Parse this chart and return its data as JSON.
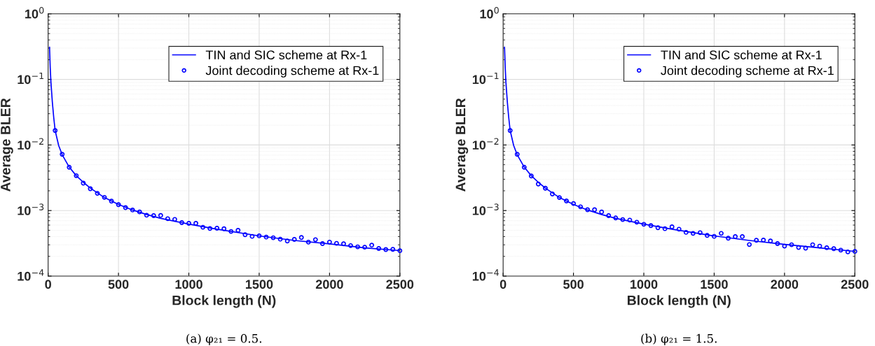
{
  "chart_data": [
    {
      "type": "line",
      "xlabel": "Block length (N)",
      "ylabel": "Average BLER",
      "log": "y",
      "grid": true,
      "legend": "top right",
      "xlim": [
        0,
        2500
      ],
      "xticks": [
        0,
        500,
        1000,
        1500,
        2000,
        2500
      ],
      "ylim": [
        0.0001,
        1
      ],
      "yticks": [
        {
          "value": 0.0001,
          "label": "10$^{−4}$"
        },
        {
          "value": 0.001,
          "label": "10$^{−3}$"
        },
        {
          "value": 0.01,
          "label": "10$^{−2}$"
        },
        {
          "value": 0.1,
          "label": "10$^{−1}$"
        },
        {
          "value": 1,
          "label": "10$^{0}$"
        }
      ],
      "annotations": [
        "(a) φ₂₁ = 0.5."
      ],
      "series": [
        {
          "name": "TIN and SIC scheme at Rx-1",
          "type": "line",
          "color": "#0000ff",
          "marker": "none",
          "line_style": "solid",
          "x": [
            10,
            15,
            20,
            30,
            40,
            50,
            75,
            100,
            150,
            200,
            250,
            300,
            400,
            500,
            600,
            700,
            800,
            1000,
            1200,
            1500,
            1750,
            2000,
            2250,
            2500
          ],
          "values": [
            0.31,
            0.15,
            0.09,
            0.045,
            0.026,
            0.0166,
            0.0098,
            0.0071,
            0.0046,
            0.0034,
            0.0027,
            0.0022,
            0.00158,
            0.00124,
            0.00102,
            0.00087,
            0.00076,
            0.00062,
            0.00052,
            0.00041,
            0.00035,
            0.00031,
            0.00027,
            0.000245
          ]
        },
        {
          "name": "Joint decoding scheme at Rx-1",
          "type": "scatter",
          "color": "#0000ff",
          "marker": "circle",
          "x": [
            50,
            100,
            150,
            200,
            250,
            300,
            350,
            400,
            450,
            500,
            550,
            600,
            650,
            700,
            750,
            800,
            850,
            900,
            950,
            1000,
            1050,
            1100,
            1150,
            1200,
            1250,
            1300,
            1350,
            1400,
            1450,
            1500,
            1550,
            1600,
            1650,
            1700,
            1750,
            1800,
            1850,
            1900,
            1950,
            2000,
            2050,
            2100,
            2150,
            2200,
            2250,
            2300,
            2350,
            2400,
            2450,
            2500
          ],
          "values": [
            0.0166,
            0.0072,
            0.00457,
            0.0034,
            0.00262,
            0.00215,
            0.00183,
            0.00159,
            0.00139,
            0.00123,
            0.00111,
            0.00102,
            0.000953,
            0.000849,
            0.000836,
            0.000843,
            0.000752,
            0.000733,
            0.000654,
            0.000638,
            0.000638,
            0.000556,
            0.000533,
            0.000537,
            0.000528,
            0.00048,
            0.0005,
            0.000428,
            0.000404,
            0.000411,
            0.000394,
            0.000385,
            0.000366,
            0.000343,
            0.000363,
            0.000388,
            0.00033,
            0.00036,
            0.000313,
            0.00033,
            0.000316,
            0.000311,
            0.000292,
            0.00028,
            0.000276,
            0.000297,
            0.000264,
            0.000254,
            0.000256,
            0.000244
          ]
        }
      ]
    },
    {
      "type": "line",
      "xlabel": "Block length (N)",
      "ylabel": "Average BLER",
      "log": "y",
      "grid": true,
      "legend": "top right",
      "xlim": [
        0,
        2500
      ],
      "xticks": [
        0,
        500,
        1000,
        1500,
        2000,
        2500
      ],
      "ylim": [
        0.0001,
        1
      ],
      "yticks": [
        {
          "value": 0.0001,
          "label": "10$^{−4}$"
        },
        {
          "value": 0.001,
          "label": "10$^{−3}$"
        },
        {
          "value": 0.01,
          "label": "10$^{−2}$"
        },
        {
          "value": 0.1,
          "label": "10$^{−1}$"
        },
        {
          "value": 1,
          "label": "10$^{0}$"
        }
      ],
      "annotations": [
        "(b) φ₂₁ = 1.5."
      ],
      "series": [
        {
          "name": "TIN and SIC scheme at Rx-1",
          "type": "line",
          "color": "#0000ff",
          "marker": "none",
          "line_style": "solid",
          "x": [
            10,
            15,
            20,
            30,
            40,
            50,
            75,
            100,
            150,
            200,
            250,
            300,
            400,
            500,
            600,
            700,
            800,
            1000,
            1200,
            1500,
            1750,
            2000,
            2250,
            2500
          ],
          "values": [
            0.31,
            0.15,
            0.09,
            0.045,
            0.026,
            0.0166,
            0.0098,
            0.0071,
            0.0046,
            0.0034,
            0.0027,
            0.0022,
            0.00158,
            0.00124,
            0.00102,
            0.00087,
            0.00076,
            0.00062,
            0.00052,
            0.00041,
            0.00035,
            0.000305,
            0.00027,
            0.000238
          ]
        },
        {
          "name": "Joint decoding scheme at Rx-1",
          "type": "scatter",
          "color": "#0000ff",
          "marker": "circle",
          "x": [
            50,
            100,
            150,
            200,
            250,
            300,
            350,
            400,
            450,
            500,
            550,
            600,
            650,
            700,
            750,
            800,
            850,
            900,
            950,
            1000,
            1050,
            1100,
            1150,
            1200,
            1250,
            1300,
            1350,
            1400,
            1450,
            1500,
            1550,
            1600,
            1650,
            1700,
            1750,
            1800,
            1850,
            1900,
            1950,
            2000,
            2050,
            2100,
            2150,
            2200,
            2250,
            2300,
            2350,
            2400,
            2450,
            2500
          ],
          "values": [
            0.0166,
            0.0072,
            0.00457,
            0.00337,
            0.00254,
            0.00219,
            0.00179,
            0.00158,
            0.0014,
            0.00128,
            0.00114,
            0.00103,
            0.00103,
            0.000953,
            0.000836,
            0.000771,
            0.000728,
            0.000716,
            0.000665,
            0.000618,
            0.000589,
            0.000547,
            0.000529,
            0.000565,
            0.00052,
            0.000465,
            0.000449,
            0.00046,
            0.000418,
            0.000404,
            0.000449,
            0.000379,
            0.000401,
            0.000401,
            0.000303,
            0.000352,
            0.000355,
            0.000343,
            0.000313,
            0.000287,
            0.000301,
            0.000273,
            0.000267,
            0.000301,
            0.000287,
            0.000271,
            0.000262,
            0.000249,
            0.000234,
            0.000238
          ]
        }
      ]
    }
  ]
}
